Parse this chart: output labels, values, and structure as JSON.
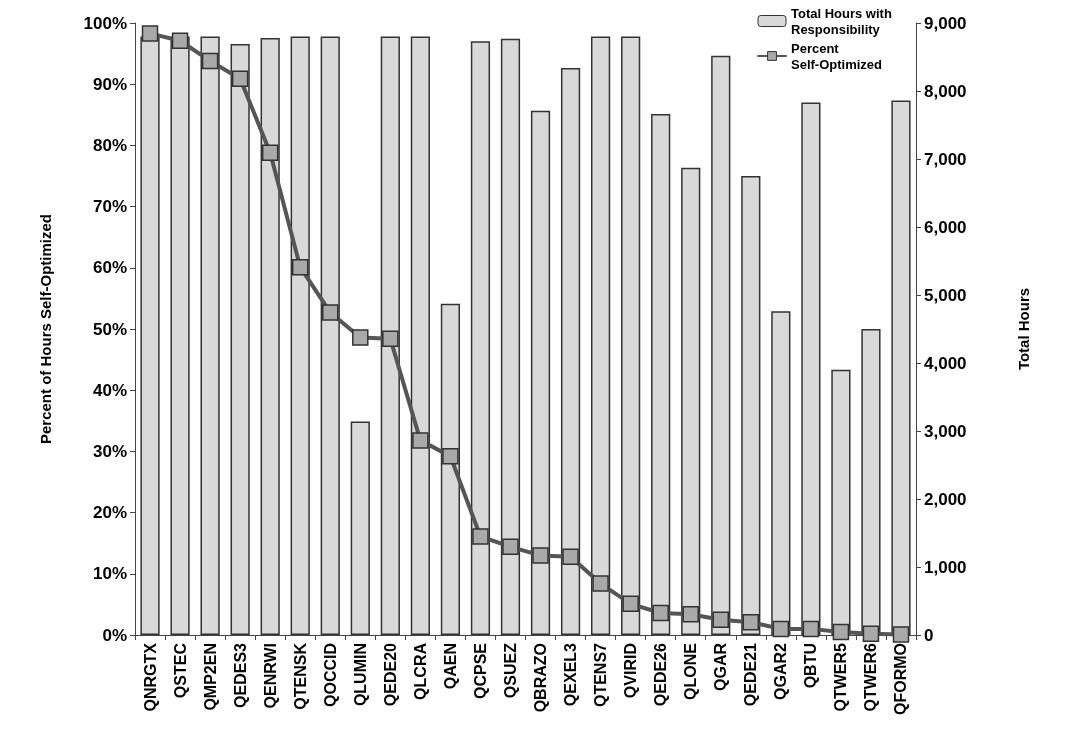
{
  "chart_data": {
    "type": "bar",
    "xlabel": null,
    "ylabel": "Percent of Hours Self-Optimized",
    "y2label": "Total Hours",
    "categories": [
      "QNRGTX",
      "QSTEC",
      "QMP2EN",
      "QEDES3",
      "QENRWI",
      "QTENSK",
      "QOCCID",
      "QLUMIN",
      "QEDE20",
      "QLCRA",
      "QAEN",
      "QCPSE",
      "QSUEZ",
      "QBRAZO",
      "QEXEL3",
      "QTENS7",
      "QVIRID",
      "QEDE26",
      "QLONE",
      "QGAR",
      "QEDE21",
      "QGAR2",
      "QBTU",
      "QTWER5",
      "QTWER6",
      "QFORMO"
    ],
    "series": [
      {
        "name": "Total Hours with Responsibility",
        "axis": "y2",
        "color": "#d9d9d9",
        "values": [
          8800,
          8800,
          8800,
          8690,
          8780,
          8800,
          8800,
          3140,
          8800,
          8800,
          4870,
          8730,
          8770,
          7710,
          8340,
          8800,
          8800,
          7660,
          6870,
          8520,
          6750,
          4760,
          7830,
          3900,
          4500,
          7860
        ]
      },
      {
        "name": "Percent Self-Optimized",
        "type": "line",
        "axis": "y",
        "color": "#555555",
        "marker": "square",
        "values": [
          98.3,
          97.1,
          93.8,
          90.9,
          78.8,
          60.1,
          52.7,
          48.6,
          48.4,
          31.8,
          29.2,
          16.1,
          14.4,
          13.0,
          12.8,
          8.4,
          5.1,
          3.6,
          3.4,
          2.5,
          2.1,
          1.0,
          1.0,
          0.5,
          0.2,
          0.1
        ]
      }
    ],
    "ylim": [
      0,
      100
    ],
    "yticks": [
      {
        "value": 0,
        "label": "0%"
      },
      {
        "value": 10,
        "label": "10%"
      },
      {
        "value": 20,
        "label": "20%"
      },
      {
        "value": 30,
        "label": "30%"
      },
      {
        "value": 40,
        "label": "40%"
      },
      {
        "value": 50,
        "label": "50%"
      },
      {
        "value": 60,
        "label": "60%"
      },
      {
        "value": 70,
        "label": "70%"
      },
      {
        "value": 80,
        "label": "80%"
      },
      {
        "value": 90,
        "label": "90%"
      },
      {
        "value": 100,
        "label": "100%"
      }
    ],
    "y2lim": [
      0,
      9000
    ],
    "y2ticks": [
      0,
      {
        "value": 1000,
        "label": "1,000"
      },
      {
        "value": 2000,
        "label": "2,000"
      },
      {
        "value": 3000,
        "label": "3,000"
      },
      {
        "value": 4000,
        "label": "4,000"
      },
      {
        "value": 5000,
        "label": "5,000"
      },
      {
        "value": 6000,
        "label": "6,000"
      },
      {
        "value": 7000,
        "label": "7,000"
      },
      {
        "value": 8000,
        "label": "8,000"
      },
      {
        "value": 9000,
        "label": "9,000"
      }
    ],
    "grid": false,
    "legend": "top right",
    "line_style": "solid"
  }
}
